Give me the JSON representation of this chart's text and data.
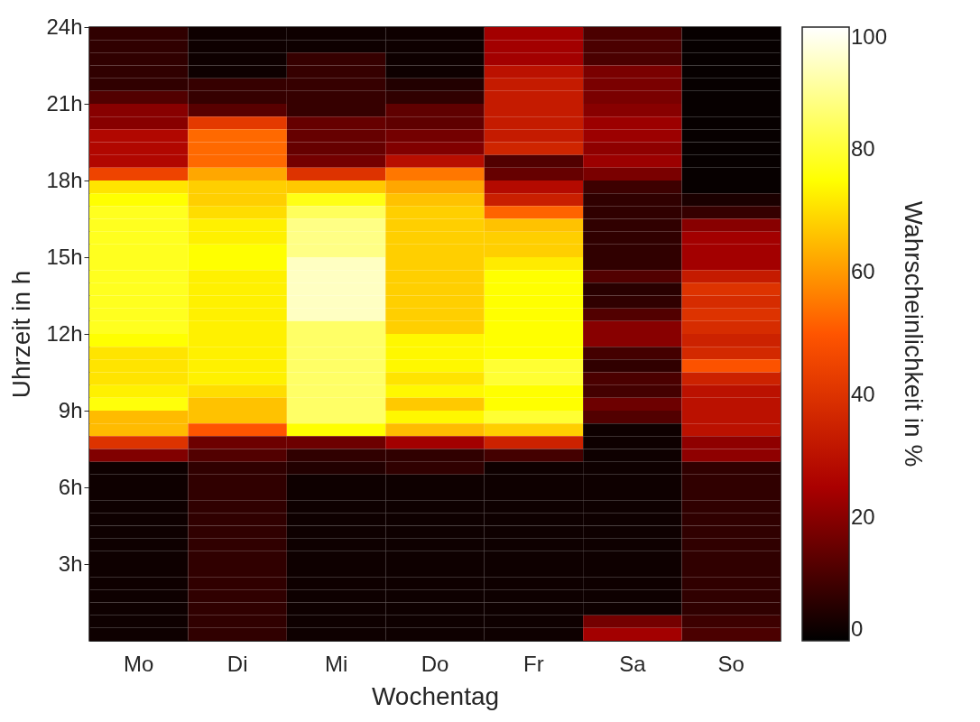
{
  "chart_data": {
    "type": "heatmap",
    "xlabel": "Wochentag",
    "ylabel": "Uhrzeit in h",
    "clabel": "Wahrscheinlichkeit in %",
    "categories": [
      "Mo",
      "Di",
      "Mi",
      "Do",
      "Fr",
      "Sa",
      "So"
    ],
    "ylim": [
      0,
      24
    ],
    "yticks": [
      {
        "value": 3,
        "label": "3h"
      },
      {
        "value": 6,
        "label": "6h"
      },
      {
        "value": 9,
        "label": "9h"
      },
      {
        "value": 12,
        "label": "12h"
      },
      {
        "value": 15,
        "label": "15h"
      },
      {
        "value": 18,
        "label": "18h"
      },
      {
        "value": 21,
        "label": "21h"
      },
      {
        "value": 24,
        "label": "24h"
      }
    ],
    "clim": [
      0,
      100
    ],
    "cticks": [
      0,
      20,
      40,
      60,
      80,
      100
    ],
    "colors": [
      "#000000",
      "#aa0000",
      "#ff5500",
      "#ffff00",
      "#ffffff"
    ],
    "grid": false,
    "cells": [
      [
        7,
        2,
        2,
        2,
        24,
        11,
        1
      ],
      [
        7,
        2,
        2,
        2,
        24,
        11,
        1
      ],
      [
        7,
        2,
        8,
        2,
        24,
        11,
        1
      ],
      [
        7,
        2,
        8,
        2,
        30,
        18,
        1
      ],
      [
        7,
        8,
        8,
        5,
        33,
        18,
        1
      ],
      [
        12,
        8,
        8,
        7,
        33,
        18,
        1
      ],
      [
        20,
        13,
        8,
        14,
        33,
        20,
        1
      ],
      [
        20,
        42,
        15,
        14,
        33,
        23,
        1
      ],
      [
        27,
        53,
        15,
        17,
        33,
        23,
        1
      ],
      [
        27,
        53,
        15,
        19,
        36,
        21,
        1
      ],
      [
        27,
        53,
        17,
        29,
        12,
        23,
        1
      ],
      [
        45,
        62,
        40,
        55,
        15,
        18,
        1
      ],
      [
        71,
        68,
        67,
        62,
        28,
        9,
        1
      ],
      [
        75,
        68,
        77,
        66,
        34,
        7,
        4
      ],
      [
        78,
        70,
        84,
        68,
        52,
        7,
        8
      ],
      [
        78,
        73,
        88,
        68,
        66,
        7,
        20
      ],
      [
        78,
        73,
        88,
        68,
        68,
        7,
        24
      ],
      [
        78,
        75,
        88,
        68,
        68,
        7,
        24
      ],
      [
        78,
        75,
        94,
        68,
        72,
        7,
        24
      ],
      [
        78,
        73,
        94,
        68,
        75,
        12,
        33
      ],
      [
        78,
        73,
        94,
        68,
        75,
        6,
        40
      ],
      [
        78,
        73,
        94,
        68,
        75,
        7,
        38
      ],
      [
        78,
        73,
        94,
        68,
        75,
        12,
        40
      ],
      [
        78,
        73,
        85,
        68,
        75,
        20,
        38
      ],
      [
        75,
        73,
        85,
        74,
        75,
        20,
        35
      ],
      [
        71,
        73,
        85,
        74,
        75,
        10,
        37
      ],
      [
        71,
        73,
        85,
        74,
        80,
        7,
        49
      ],
      [
        71,
        73,
        85,
        71,
        80,
        11,
        35
      ],
      [
        73,
        70,
        85,
        74,
        75,
        10,
        30
      ],
      [
        76,
        66,
        85,
        67,
        75,
        16,
        30
      ],
      [
        65,
        66,
        85,
        74,
        80,
        12,
        30
      ],
      [
        65,
        50,
        75,
        65,
        68,
        2,
        30
      ],
      [
        40,
        16,
        16,
        24,
        35,
        2,
        21
      ],
      [
        19,
        12,
        7,
        7,
        10,
        2,
        21
      ],
      [
        2,
        7,
        5,
        7,
        2,
        2,
        7
      ],
      [
        2,
        7,
        2,
        2,
        2,
        2,
        7
      ],
      [
        2,
        7,
        2,
        2,
        2,
        2,
        7
      ],
      [
        2,
        7,
        2,
        2,
        2,
        2,
        7
      ],
      [
        2,
        7,
        2,
        2,
        2,
        2,
        7
      ],
      [
        2,
        7,
        2,
        2,
        2,
        2,
        7
      ],
      [
        2,
        7,
        2,
        2,
        2,
        2,
        7
      ],
      [
        2,
        7,
        2,
        2,
        2,
        2,
        7
      ],
      [
        2,
        7,
        2,
        2,
        2,
        2,
        7
      ],
      [
        2,
        7,
        2,
        2,
        2,
        2,
        7
      ],
      [
        2,
        7,
        2,
        2,
        2,
        2,
        7
      ],
      [
        2,
        7,
        2,
        2,
        2,
        2,
        7
      ],
      [
        2,
        7,
        2,
        2,
        2,
        17,
        9
      ],
      [
        2,
        7,
        2,
        2,
        2,
        24,
        11
      ]
    ]
  }
}
